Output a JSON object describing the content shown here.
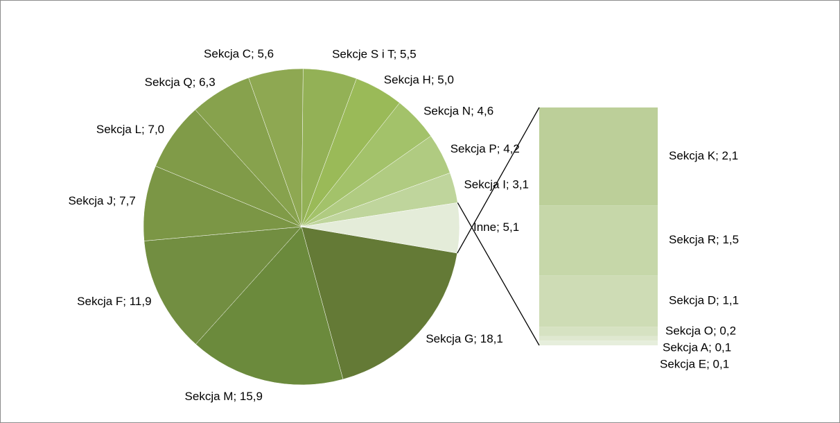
{
  "chart_data": {
    "type": "bar-of-pie",
    "pie": {
      "categories": [
        "Sekcja G",
        "Sekcja M",
        "Sekcja F",
        "Sekcja J",
        "Sekcja L",
        "Sekcja Q",
        "Sekcja C",
        "Sekcje S i T",
        "Sekcja H",
        "Sekcja N",
        "Sekcja P",
        "Sekcja I",
        "Inne"
      ],
      "values": [
        18.1,
        15.9,
        11.9,
        7.7,
        7.0,
        6.3,
        5.6,
        5.5,
        5.0,
        4.6,
        4.2,
        3.1,
        5.1
      ],
      "value_labels": [
        "Sekcja G; 18,1",
        "Sekcja M; 15,9",
        "Sekcja F; 11,9",
        "Sekcja J; 7,7",
        "Sekcja L; 7,0",
        "Sekcja Q; 6,3",
        "Sekcja C; 5,6",
        "Sekcje S i T; 5,5",
        "Sekcja H; 5,0",
        "Sekcja N; 4,6",
        "Sekcja P; 4,2",
        "Sekcja I; 3,1",
        "Inne; 5,1"
      ],
      "colors": [
        "#647a36",
        "#6b8a3c",
        "#728e41",
        "#7b9645",
        "#809b48",
        "#87a24d",
        "#8ea852",
        "#93b156",
        "#9aba58",
        "#a3c26a",
        "#b0cb81",
        "#bfd59c",
        "#e4ecd9"
      ]
    },
    "bar": {
      "categories": [
        "Sekcja K",
        "Sekcja R",
        "Sekcja D",
        "Sekcja O",
        "Sekcja A",
        "Sekcja E"
      ],
      "values": [
        2.1,
        1.5,
        1.1,
        0.2,
        0.1,
        0.1
      ],
      "value_labels": [
        "Sekcja K; 2,1",
        "Sekcja R; 1,5",
        "Sekcja D; 1,1",
        "Sekcja O; 0,2",
        "Sekcja A; 0,1",
        "Sekcja E; 0,1"
      ],
      "colors": [
        "#bccf99",
        "#c6d7a9",
        "#cedcb5",
        "#d6e2c2",
        "#dfe8d0",
        "#e6eedc"
      ]
    }
  }
}
